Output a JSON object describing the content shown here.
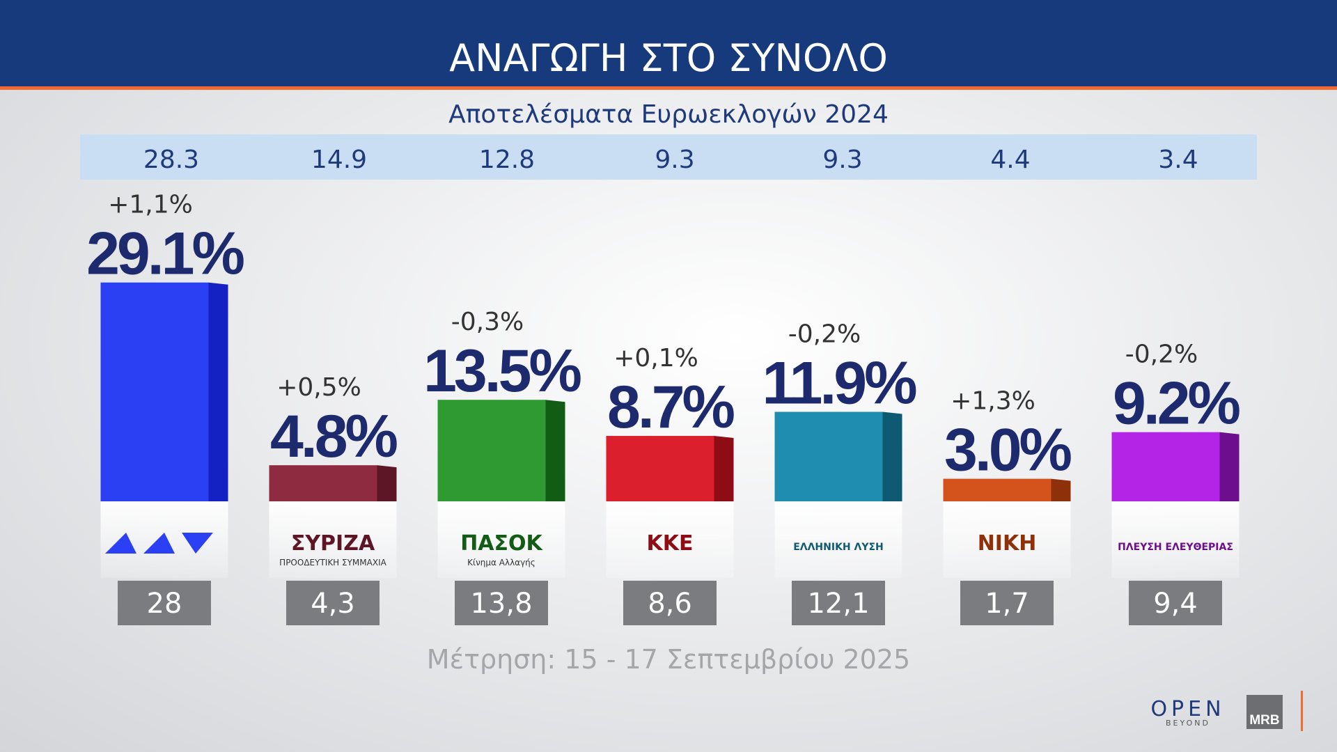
{
  "chart_data": {
    "type": "bar",
    "title": "ΑΝΑΓΩΓΗ ΣΤΟ ΣΥΝΟΛΟ",
    "subtitle": "Αποτελέσματα Ευρωεκλογών 2024",
    "note": "Μέτρηση: 15 - 17 Σεπτεμβρίου 2025",
    "categories": [
      null,
      "ΣΥΡΙΖΑ",
      "ΠΑΣΟΚ",
      "ΚΚΕ",
      "ΕΛΛΗΝΙΚΗ ΛΥΣΗ",
      "ΝΙΚΗ",
      "ΠΛΕΥΣΗ ΕΛΕΥΘΕΡΙΑΣ"
    ],
    "category_sublabels": [
      null,
      "ΠΡΟΟΔΕΥΤΙΚΗ ΣΥΜΜΑΧΙΑ",
      "Κίνημα Αλλαγής",
      null,
      null,
      null,
      null
    ],
    "values": [
      29.1,
      4.8,
      13.5,
      8.7,
      11.9,
      3.0,
      9.2
    ],
    "value_labels": [
      "29.1%",
      "4.8%",
      "13.5%",
      "8.7%",
      "11.9%",
      "3.0%",
      "9.2%"
    ],
    "colors": [
      "#2b40f2",
      "#8e2b40",
      "#2f9a32",
      "#dc1f2c",
      "#1f8db0",
      "#d4531c",
      "#b424e6"
    ],
    "side_colors": [
      "#1422c4",
      "#5c1626",
      "#135c16",
      "#8e0c14",
      "#0d5a72",
      "#8e300a",
      "#6c0e8e"
    ],
    "changes": {
      "values": [
        1.1,
        0.5,
        -0.3,
        0.1,
        -0.2,
        1.3,
        -0.2
      ],
      "value_labels": [
        "+1,1%",
        "+0,5%",
        "-0,3%",
        "+0,1%",
        "-0,2%",
        "+1,3%",
        "-0,2%"
      ]
    },
    "previous": {
      "values": [
        28,
        4.3,
        13.8,
        8.6,
        12.1,
        1.7,
        9.4
      ],
      "value_labels": [
        "28",
        "4,3",
        "13,8",
        "8,6",
        "12,1",
        "1,7",
        "9,4"
      ]
    },
    "euro_2024": [
      28.3,
      14.9,
      12.8,
      9.3,
      9.3,
      4.4,
      3.4
    ],
    "brand": {
      "channel": "OPEN",
      "tagline": "BEYOND",
      "pollster": "MRB"
    }
  }
}
